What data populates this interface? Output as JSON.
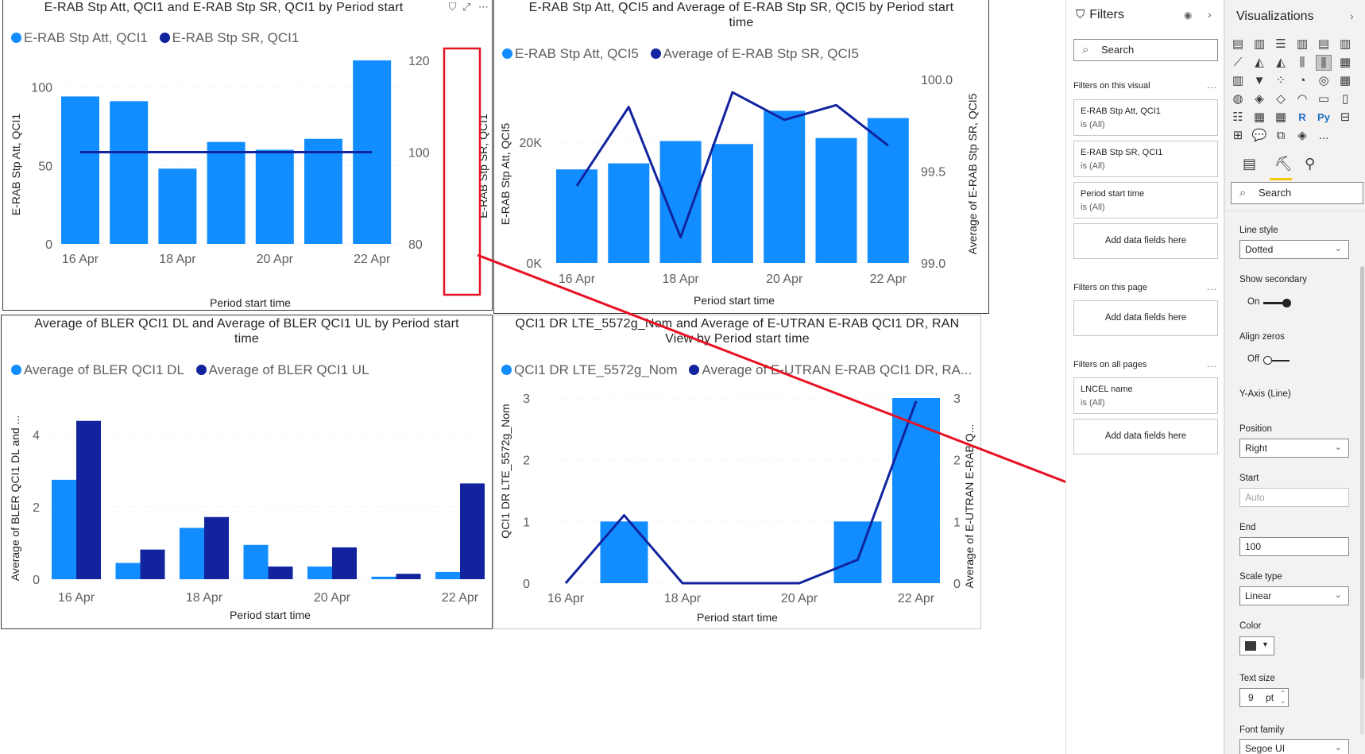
{
  "charts": {
    "qci1": {
      "title": "E-RAB Stp Att, QCI1 and E-RAB Stp SR, QCI1 by Period start",
      "legend": [
        {
          "name": "E-RAB Stp Att, QCI1",
          "color": "#118dff"
        },
        {
          "name": "E-RAB Stp SR, QCI1",
          "color": "#12239e"
        }
      ],
      "y_left_title": "E-RAB Stp Att, QCI1",
      "y_right_title": "E-RAB Stp SR, QCI1",
      "x_title": "Period start time",
      "y_left_ticks": [
        "0",
        "50",
        "100"
      ],
      "y_right_ticks": [
        "80",
        "100",
        "120"
      ],
      "x_ticks": [
        "16 Apr",
        "18 Apr",
        "20 Apr",
        "22 Apr"
      ]
    },
    "qci5": {
      "title_line1": "E-RAB Stp Att, QCI5 and Average of E-RAB Stp SR, QCI5 by Period start",
      "title_line2": "time",
      "legend": [
        {
          "name": "E-RAB Stp Att, QCI5",
          "color": "#118dff"
        },
        {
          "name": "Average of E-RAB Stp SR, QCI5",
          "color": "#12239e"
        }
      ],
      "y_left_title": "E-RAB Stp Att, QCI5",
      "y_right_title": "Average of E-RAB Stp SR, QCI5",
      "x_title": "Period start time",
      "y_left_ticks": [
        "0K",
        "20K"
      ],
      "y_right_ticks": [
        "99.0",
        "99.5",
        "100.0"
      ],
      "x_ticks": [
        "16 Apr",
        "18 Apr",
        "20 Apr",
        "22 Apr"
      ]
    },
    "bler": {
      "title_line1": "Average of BLER QCI1 DL and Average of BLER QCI1 UL by Period start",
      "title_line2": "time",
      "legend": [
        {
          "name": "Average of BLER QCI1 DL",
          "color": "#118dff"
        },
        {
          "name": "Average of BLER QCI1 UL",
          "color": "#12239e"
        }
      ],
      "y_left_title": "Average of BLER QCI1 DL and ...",
      "x_title": "Period start time",
      "y_left_ticks": [
        "0",
        "2",
        "4"
      ],
      "x_ticks": [
        "16 Apr",
        "18 Apr",
        "20 Apr",
        "22 Apr"
      ]
    },
    "dr": {
      "title_line1": "QCI1 DR LTE_5572g_Nom and Average of E-UTRAN E-RAB QCI1 DR, RAN",
      "title_line2": "View by Period start time",
      "legend": [
        {
          "name": "QCI1 DR LTE_5572g_Nom",
          "color": "#118dff"
        },
        {
          "name": "Average of E-UTRAN E-RAB QCI1 DR, RA...",
          "color": "#12239e"
        }
      ],
      "y_left_title": "QCI1 DR LTE_5572g_Nom",
      "y_right_title": "Average of E-UTRAN E-RAB Q...",
      "x_title": "Period start time",
      "y_left_ticks": [
        "0",
        "1",
        "2",
        "3"
      ],
      "y_right_ticks": [
        "0",
        "1",
        "2",
        "3"
      ],
      "x_ticks": [
        "16 Apr",
        "18 Apr",
        "20 Apr",
        "22 Apr"
      ]
    }
  },
  "chart_data": [
    {
      "type": "bar",
      "title": "E-RAB Stp Att, QCI1 and E-RAB Stp SR, QCI1 by Period start",
      "categories": [
        "16 Apr",
        "17 Apr",
        "18 Apr",
        "19 Apr",
        "20 Apr",
        "21 Apr",
        "22 Apr"
      ],
      "series": [
        {
          "name": "E-RAB Stp Att, QCI1",
          "type": "bar",
          "axis": "left",
          "values": [
            94,
            91,
            48,
            65,
            60,
            67,
            117
          ]
        },
        {
          "name": "E-RAB Stp SR, QCI1",
          "type": "line",
          "axis": "right",
          "values": [
            100,
            100,
            100,
            100,
            100,
            100,
            100
          ]
        }
      ],
      "ylim_left": [
        0,
        117
      ],
      "ylim_right": [
        80,
        120
      ],
      "xlabel": "Period start time",
      "ylabel": "E-RAB Stp Att, QCI1"
    },
    {
      "type": "bar",
      "title": "E-RAB Stp Att, QCI5 and Average of E-RAB Stp SR, QCI5 by Period start time",
      "categories": [
        "16 Apr",
        "17 Apr",
        "18 Apr",
        "19 Apr",
        "20 Apr",
        "21 Apr",
        "22 Apr"
      ],
      "series": [
        {
          "name": "E-RAB Stp Att, QCI5",
          "type": "bar",
          "axis": "left",
          "values": [
            15500,
            16500,
            20200,
            19700,
            25200,
            20700,
            24000
          ]
        },
        {
          "name": "Average of E-RAB Stp SR, QCI5",
          "type": "line",
          "axis": "right",
          "values": [
            99.42,
            99.85,
            99.14,
            99.93,
            99.78,
            99.86,
            99.64
          ]
        }
      ],
      "ylim_left": [
        0,
        30000
      ],
      "ylim_right": [
        99.0,
        100.0
      ],
      "xlabel": "Period start time"
    },
    {
      "type": "bar",
      "title": "Average of BLER QCI1 DL and Average of BLER QCI1 UL by Period start time",
      "categories": [
        "16 Apr",
        "17 Apr",
        "18 Apr",
        "19 Apr",
        "20 Apr",
        "21 Apr",
        "22 Apr"
      ],
      "series": [
        {
          "name": "Average of BLER QCI1 DL",
          "values": [
            2.75,
            0.45,
            1.42,
            0.95,
            0.35,
            0.07,
            0.2
          ]
        },
        {
          "name": "Average of BLER QCI1 UL",
          "values": [
            4.38,
            0.82,
            1.72,
            0.35,
            0.88,
            0.15,
            2.65
          ]
        }
      ],
      "ylim": [
        0,
        5
      ],
      "xlabel": "Period start time"
    },
    {
      "type": "bar",
      "title": "QCI1 DR LTE_5572g_Nom and Average of E-UTRAN E-RAB QCI1 DR, RAN View by Period start time",
      "categories": [
        "16 Apr",
        "17 Apr",
        "18 Apr",
        "19 Apr",
        "20 Apr",
        "21 Apr",
        "22 Apr"
      ],
      "series": [
        {
          "name": "QCI1 DR LTE_5572g_Nom",
          "type": "bar",
          "axis": "left",
          "values": [
            0,
            1,
            0,
            0,
            0,
            1,
            3
          ]
        },
        {
          "name": "Average of E-UTRAN E-RAB QCI1 DR, RA...",
          "type": "line",
          "axis": "right",
          "values": [
            0,
            1.1,
            0,
            0,
            0,
            0.38,
            2.95
          ]
        }
      ],
      "ylim_left": [
        0,
        3
      ],
      "ylim_right": [
        0,
        3
      ],
      "xlabel": "Period start time"
    }
  ],
  "filters": {
    "title": "Filters",
    "search_placeholder": "Search",
    "on_visual_label": "Filters on this visual",
    "visual_cards": [
      {
        "name": "E-RAB Stp Att, QCI1",
        "state": "is (All)"
      },
      {
        "name": "E-RAB Stp SR, QCI1",
        "state": "is (All)"
      },
      {
        "name": "Period start time",
        "state": "is (All)"
      }
    ],
    "add_fields": "Add data fields here",
    "on_page_label": "Filters on this page",
    "on_all_label": "Filters on all pages",
    "all_cards": [
      {
        "name": "LNCEL name",
        "state": "is (All)"
      }
    ],
    "more": "..."
  },
  "visualizations": {
    "title": "Visualizations",
    "more_visuals": "...",
    "search_placeholder": "Search",
    "props": {
      "line_style_label": "Line style",
      "line_style_value": "Dotted",
      "show_secondary_label": "Show secondary",
      "show_secondary_state": "On",
      "align_zeros_label": "Align zeros",
      "align_zeros_state": "Off",
      "y_axis_line_label": "Y-Axis (Line)",
      "position_label": "Position",
      "position_value": "Right",
      "start_label": "Start",
      "start_placeholder": "Auto",
      "end_label": "End",
      "end_value": "100",
      "scale_type_label": "Scale type",
      "scale_type_value": "Linear",
      "color_label": "Color",
      "text_size_label": "Text size",
      "text_size_value": "9",
      "text_size_unit": "pt",
      "font_family_label": "Font family",
      "font_family_value": "Segoe UI"
    }
  }
}
